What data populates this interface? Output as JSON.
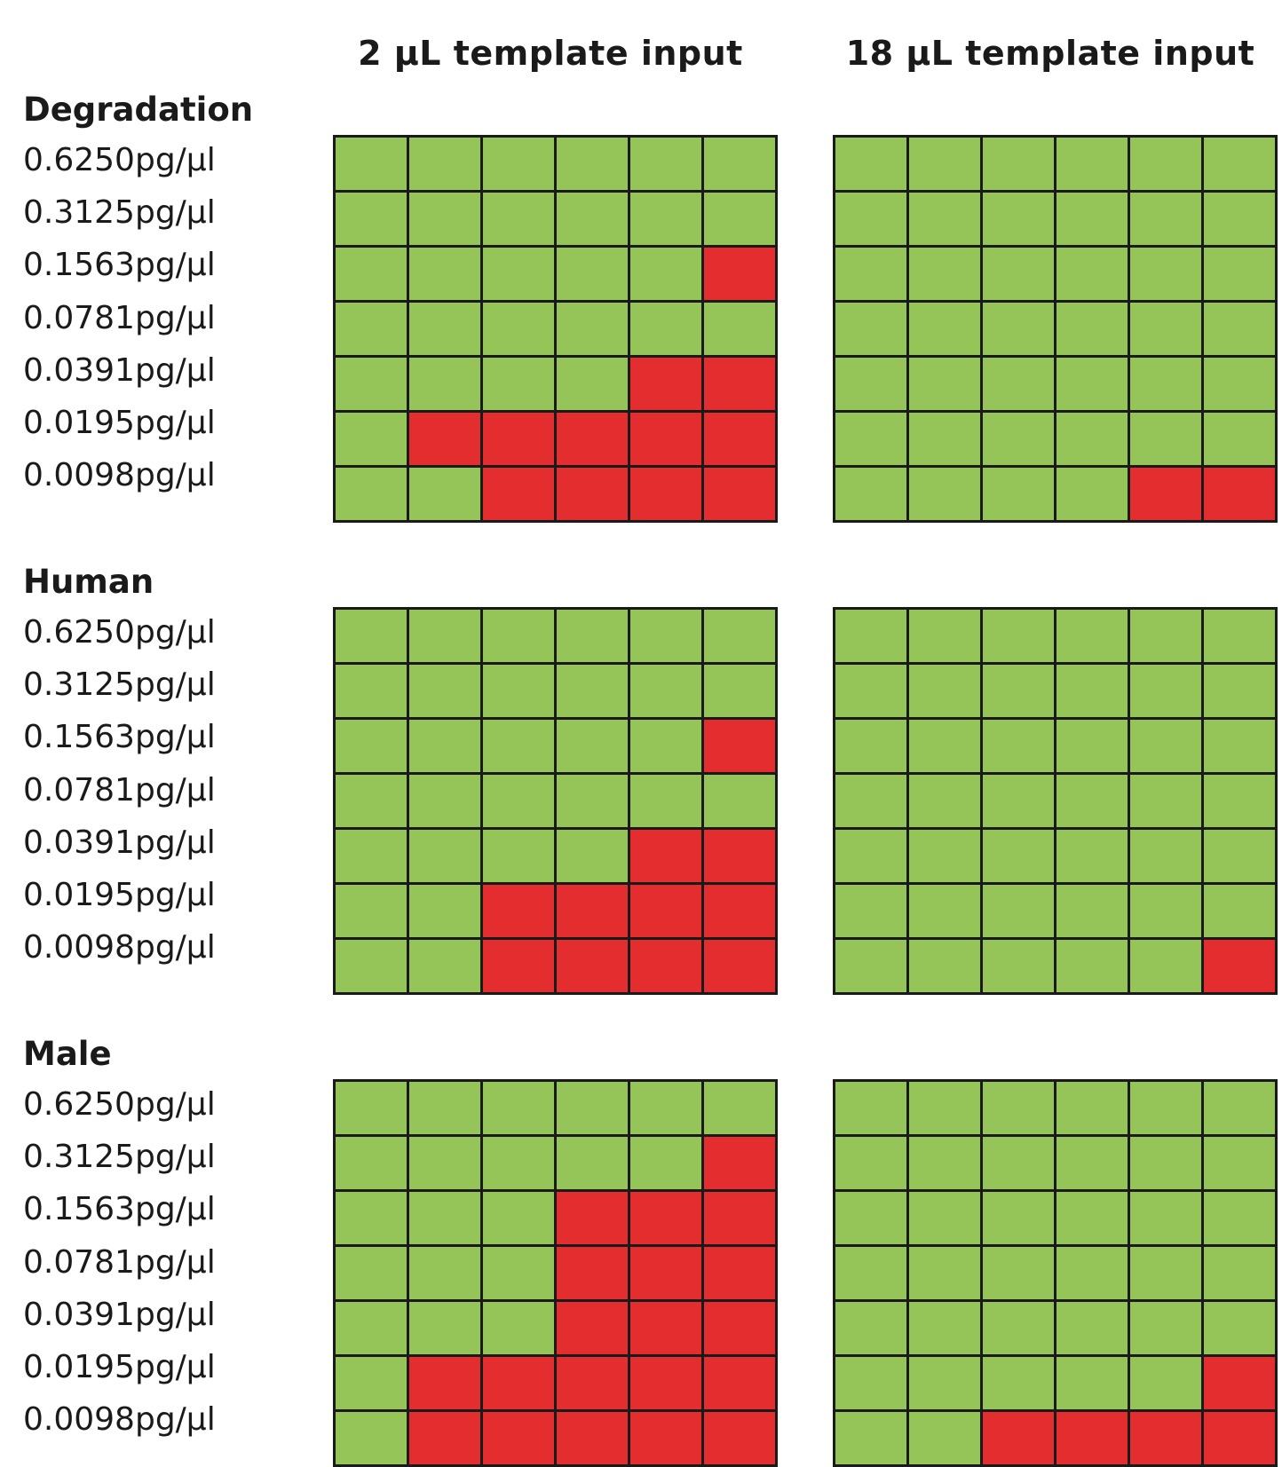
{
  "chart_data": {
    "type": "heatmap",
    "columns": [
      "2 µL template input",
      "18 µL template input"
    ],
    "status_colors": {
      "0": "#e32d2f",
      "1": "#95c459"
    },
    "panels": [
      {
        "title": "Degradation",
        "rows": [
          "0.6250pg/µl",
          "0.3125pg/µl",
          "0.1563pg/µl",
          "0.0781pg/µl",
          "0.0391pg/µl",
          "0.0195pg/µl",
          "0.0098pg/µl"
        ],
        "grids": [
          [
            [
              1,
              1,
              1,
              1,
              1,
              1
            ],
            [
              1,
              1,
              1,
              1,
              1,
              1
            ],
            [
              1,
              1,
              1,
              1,
              1,
              0
            ],
            [
              1,
              1,
              1,
              1,
              1,
              1
            ],
            [
              1,
              1,
              1,
              1,
              0,
              0
            ],
            [
              1,
              0,
              0,
              0,
              0,
              0
            ],
            [
              1,
              1,
              0,
              0,
              0,
              0
            ]
          ],
          [
            [
              1,
              1,
              1,
              1,
              1,
              1
            ],
            [
              1,
              1,
              1,
              1,
              1,
              1
            ],
            [
              1,
              1,
              1,
              1,
              1,
              1
            ],
            [
              1,
              1,
              1,
              1,
              1,
              1
            ],
            [
              1,
              1,
              1,
              1,
              1,
              1
            ],
            [
              1,
              1,
              1,
              1,
              1,
              1
            ],
            [
              1,
              1,
              1,
              1,
              0,
              0
            ]
          ]
        ]
      },
      {
        "title": "Human",
        "rows": [
          "0.6250pg/µl",
          "0.3125pg/µl",
          "0.1563pg/µl",
          "0.0781pg/µl",
          "0.0391pg/µl",
          "0.0195pg/µl",
          "0.0098pg/µl"
        ],
        "grids": [
          [
            [
              1,
              1,
              1,
              1,
              1,
              1
            ],
            [
              1,
              1,
              1,
              1,
              1,
              1
            ],
            [
              1,
              1,
              1,
              1,
              1,
              0
            ],
            [
              1,
              1,
              1,
              1,
              1,
              1
            ],
            [
              1,
              1,
              1,
              1,
              0,
              0
            ],
            [
              1,
              1,
              0,
              0,
              0,
              0
            ],
            [
              1,
              1,
              0,
              0,
              0,
              0
            ]
          ],
          [
            [
              1,
              1,
              1,
              1,
              1,
              1
            ],
            [
              1,
              1,
              1,
              1,
              1,
              1
            ],
            [
              1,
              1,
              1,
              1,
              1,
              1
            ],
            [
              1,
              1,
              1,
              1,
              1,
              1
            ],
            [
              1,
              1,
              1,
              1,
              1,
              1
            ],
            [
              1,
              1,
              1,
              1,
              1,
              1
            ],
            [
              1,
              1,
              1,
              1,
              1,
              0
            ]
          ]
        ]
      },
      {
        "title": "Male",
        "rows": [
          "0.6250pg/µl",
          "0.3125pg/µl",
          "0.1563pg/µl",
          "0.0781pg/µl",
          "0.0391pg/µl",
          "0.0195pg/µl",
          "0.0098pg/µl"
        ],
        "grids": [
          [
            [
              1,
              1,
              1,
              1,
              1,
              1
            ],
            [
              1,
              1,
              1,
              1,
              1,
              0
            ],
            [
              1,
              1,
              1,
              0,
              0,
              0
            ],
            [
              1,
              1,
              1,
              0,
              0,
              0
            ],
            [
              1,
              1,
              1,
              0,
              0,
              0
            ],
            [
              1,
              0,
              0,
              0,
              0,
              0
            ],
            [
              1,
              0,
              0,
              0,
              0,
              0
            ]
          ],
          [
            [
              1,
              1,
              1,
              1,
              1,
              1
            ],
            [
              1,
              1,
              1,
              1,
              1,
              1
            ],
            [
              1,
              1,
              1,
              1,
              1,
              1
            ],
            [
              1,
              1,
              1,
              1,
              1,
              1
            ],
            [
              1,
              1,
              1,
              1,
              1,
              1
            ],
            [
              1,
              1,
              1,
              1,
              1,
              0
            ],
            [
              1,
              1,
              0,
              0,
              0,
              0
            ]
          ]
        ]
      }
    ]
  }
}
